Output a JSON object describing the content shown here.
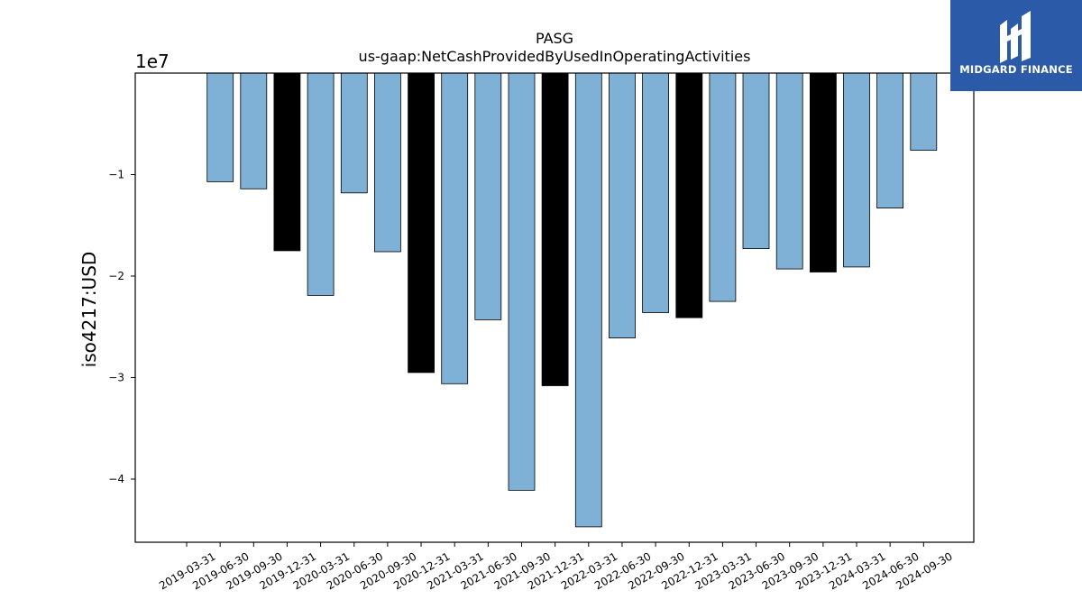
{
  "chart_data": {
    "type": "bar",
    "title": "PASG",
    "subtitle": "us-gaap:NetCashProvidedByUsedInOperatingActivities",
    "ylabel": "iso4217:USD",
    "offset_label": "1e7",
    "ylim": [
      -4.7,
      0
    ],
    "yticks": [
      -1,
      -2,
      -3,
      -4
    ],
    "ytick_labels": [
      "−1",
      "−2",
      "−3",
      "−4"
    ],
    "categories": [
      "2019-03-31",
      "2019-06-30",
      "2019-09-30",
      "2019-12-31",
      "2020-03-31",
      "2020-06-30",
      "2020-09-30",
      "2020-12-31",
      "2021-03-31",
      "2021-06-30",
      "2021-09-30",
      "2021-12-31",
      "2022-03-31",
      "2022-06-30",
      "2022-09-30",
      "2022-12-31",
      "2023-03-31",
      "2023-06-30",
      "2023-09-30",
      "2023-12-31",
      "2024-03-31",
      "2024-06-30",
      "2024-09-30"
    ],
    "values": [
      null,
      -1.07,
      -1.14,
      -1.75,
      -2.19,
      -1.18,
      -1.76,
      -2.95,
      -3.06,
      -2.43,
      -4.11,
      -3.08,
      -4.47,
      -2.61,
      -2.36,
      -2.41,
      -2.25,
      -1.73,
      -1.93,
      -1.96,
      -1.91,
      -1.33,
      -0.76
    ],
    "highlight": [
      false,
      false,
      false,
      true,
      false,
      false,
      false,
      true,
      false,
      false,
      false,
      true,
      false,
      false,
      false,
      true,
      false,
      false,
      false,
      true,
      false,
      false,
      false
    ],
    "colors": {
      "bar": "#7fb0d5",
      "highlight": "#000000",
      "edge": "#000000"
    }
  },
  "logo": {
    "text": "MIDGARD FINANCE",
    "background": "#2b5aa8"
  }
}
